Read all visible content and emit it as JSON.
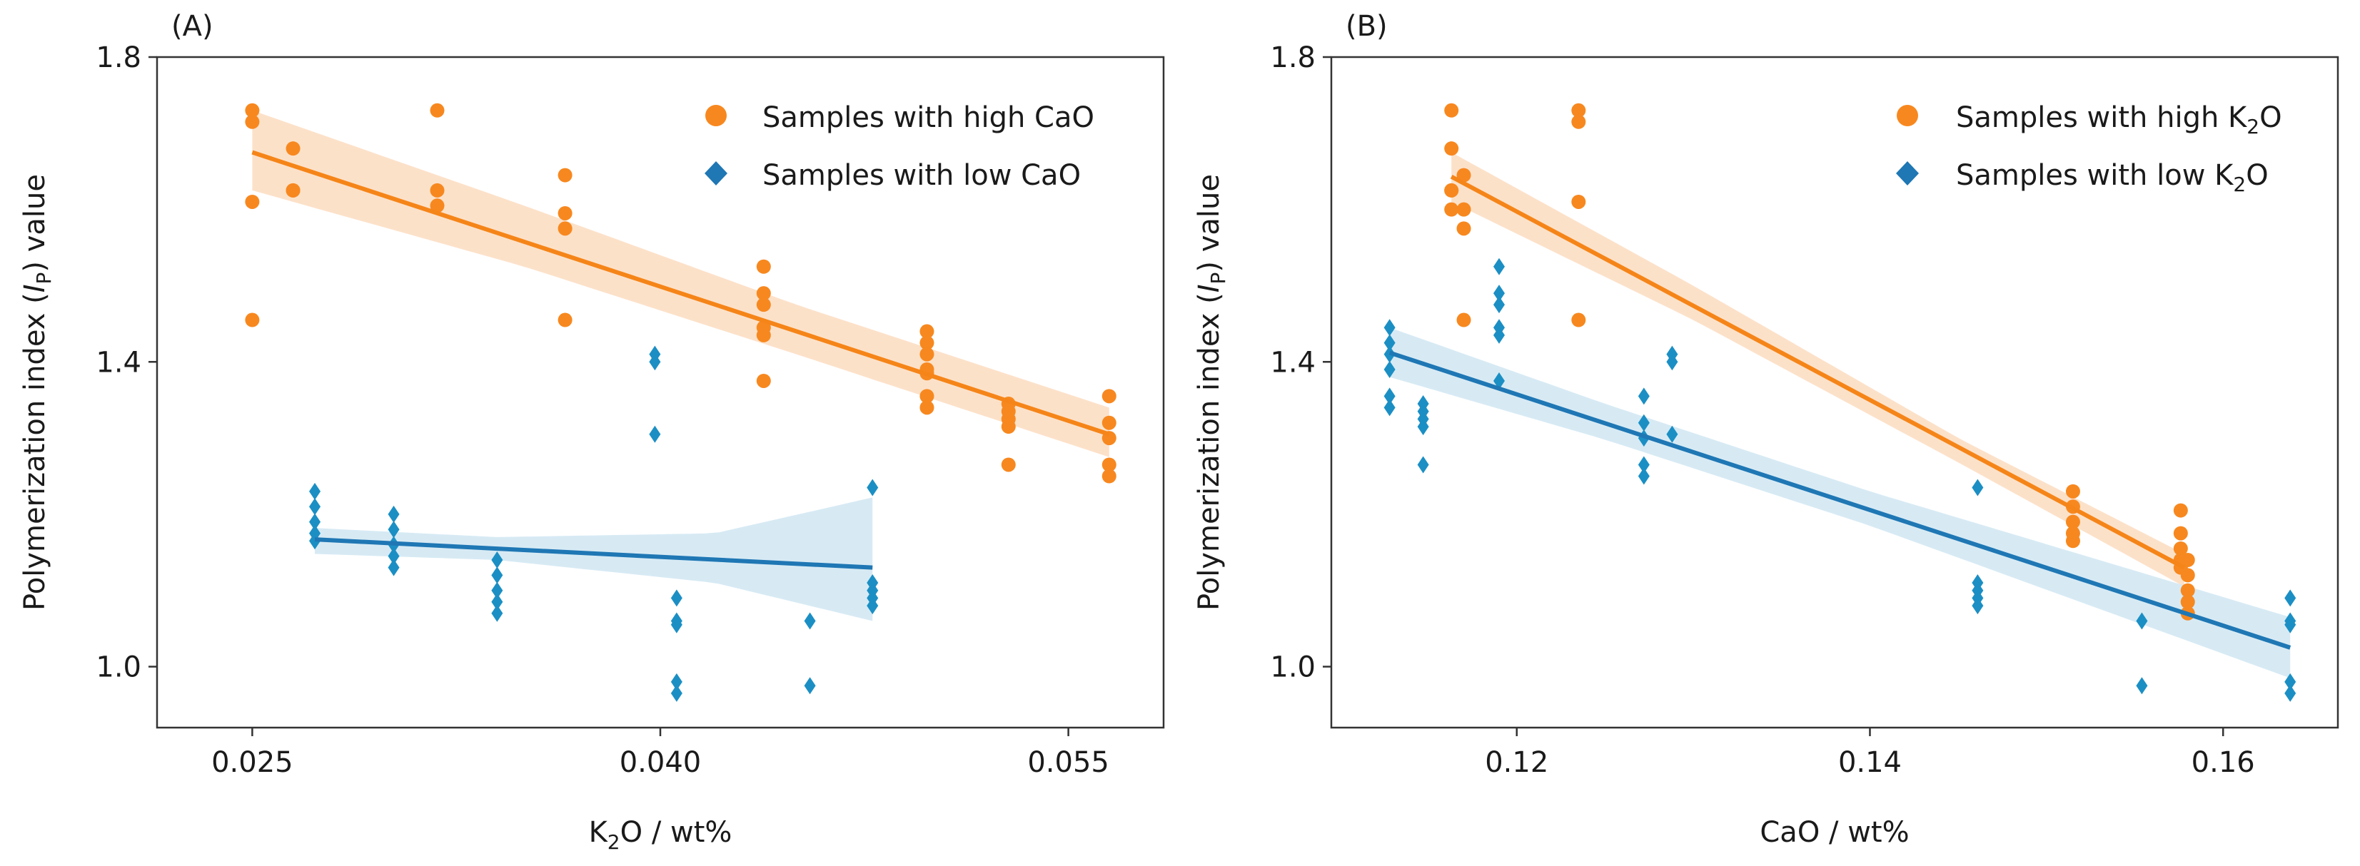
{
  "chart_data": [
    {
      "type": "scatter",
      "panel_label": "(A)",
      "xlabel": {
        "main": "K",
        "sub": "2",
        "rest": "O / wt%"
      },
      "ylabel": {
        "pre": "Polymerization index (",
        "var": "I",
        "sub": "P",
        "post": ") value"
      },
      "xlim": [
        0.0215,
        0.0585
      ],
      "ylim": [
        0.92,
        1.8
      ],
      "xticks": [
        0.025,
        0.04,
        0.055
      ],
      "xtick_labels": [
        "0.025",
        "0.040",
        "0.055"
      ],
      "yticks": [
        1.0,
        1.4,
        1.8
      ],
      "ytick_labels": [
        "1.0",
        "1.4",
        "1.8"
      ],
      "legend": [
        {
          "label_main": "Samples with high CaO",
          "label_sub": "",
          "label_rest": "",
          "marker": "circle",
          "color": "#f7881f"
        },
        {
          "label_main": "Samples with low CaO",
          "label_sub": "",
          "label_rest": "",
          "marker": "diamond",
          "color": "#1f77b4"
        }
      ],
      "series": [
        {
          "name": "Samples with high CaO",
          "marker": "circle",
          "color": "#f7881f",
          "band_color": "#fbd9bb",
          "points": [
            [
              0.025,
              1.73
            ],
            [
              0.025,
              1.715
            ],
            [
              0.025,
              1.61
            ],
            [
              0.025,
              1.455
            ],
            [
              0.0265,
              1.68
            ],
            [
              0.0265,
              1.625
            ],
            [
              0.0265,
              1.625
            ],
            [
              0.0318,
              1.73
            ],
            [
              0.0318,
              1.625
            ],
            [
              0.0318,
              1.605
            ],
            [
              0.0365,
              1.645
            ],
            [
              0.0365,
              1.595
            ],
            [
              0.0365,
              1.575
            ],
            [
              0.0365,
              1.455
            ],
            [
              0.0438,
              1.525
            ],
            [
              0.0438,
              1.49
            ],
            [
              0.0438,
              1.475
            ],
            [
              0.0438,
              1.445
            ],
            [
              0.0438,
              1.435
            ],
            [
              0.0438,
              1.375
            ],
            [
              0.0498,
              1.44
            ],
            [
              0.0498,
              1.425
            ],
            [
              0.0498,
              1.41
            ],
            [
              0.0498,
              1.39
            ],
            [
              0.0498,
              1.385
            ],
            [
              0.0498,
              1.355
            ],
            [
              0.0498,
              1.34
            ],
            [
              0.0528,
              1.345
            ],
            [
              0.0528,
              1.335
            ],
            [
              0.0528,
              1.325
            ],
            [
              0.0528,
              1.315
            ],
            [
              0.0528,
              1.265
            ],
            [
              0.0565,
              1.355
            ],
            [
              0.0565,
              1.32
            ],
            [
              0.0565,
              1.3
            ],
            [
              0.0565,
              1.265
            ],
            [
              0.0565,
              1.25
            ]
          ],
          "fit": {
            "x": [
              0.025,
              0.0565
            ],
            "y": [
              1.675,
              1.305
            ]
          },
          "band": {
            "x": [
              0.025,
              0.035,
              0.045,
              0.0565
            ],
            "upper": [
              1.73,
              1.605,
              1.475,
              1.34
            ],
            "lower": [
              1.625,
              1.525,
              1.41,
              1.275
            ]
          }
        },
        {
          "name": "Samples with low CaO",
          "marker": "diamond",
          "color": "#1b8fc4",
          "band_color": "#cde5f1",
          "points": [
            [
              0.0273,
              1.23
            ],
            [
              0.0273,
              1.21
            ],
            [
              0.0273,
              1.19
            ],
            [
              0.0273,
              1.175
            ],
            [
              0.0273,
              1.165
            ],
            [
              0.0302,
              1.2
            ],
            [
              0.0302,
              1.18
            ],
            [
              0.0302,
              1.16
            ],
            [
              0.0302,
              1.145
            ],
            [
              0.0302,
              1.13
            ],
            [
              0.034,
              1.14
            ],
            [
              0.034,
              1.12
            ],
            [
              0.034,
              1.1
            ],
            [
              0.034,
              1.085
            ],
            [
              0.034,
              1.07
            ],
            [
              0.0398,
              1.41
            ],
            [
              0.0398,
              1.4
            ],
            [
              0.0398,
              1.305
            ],
            [
              0.0406,
              1.09
            ],
            [
              0.0406,
              1.06
            ],
            [
              0.0406,
              1.055
            ],
            [
              0.0406,
              0.98
            ],
            [
              0.0406,
              0.965
            ],
            [
              0.0455,
              1.06
            ],
            [
              0.0455,
              0.975
            ],
            [
              0.0478,
              1.235
            ],
            [
              0.0478,
              1.11
            ],
            [
              0.0478,
              1.1
            ],
            [
              0.0478,
              1.09
            ],
            [
              0.0478,
              1.08
            ]
          ],
          "fit": {
            "x": [
              0.0273,
              0.0478
            ],
            "y": [
              1.167,
              1.13
            ]
          },
          "band": {
            "x": [
              0.0273,
              0.034,
              0.042,
              0.0478
            ],
            "upper": [
              1.182,
              1.17,
              1.175,
              1.222
            ],
            "lower": [
              1.148,
              1.14,
              1.11,
              1.06
            ]
          }
        }
      ]
    },
    {
      "type": "scatter",
      "panel_label": "(B)",
      "xlabel": {
        "main": "CaO / wt%",
        "sub": "",
        "rest": ""
      },
      "ylabel": {
        "pre": "Polymerization index (",
        "var": "I",
        "sub": "P",
        "post": ") value"
      },
      "xlim": [
        0.1095,
        0.1665
      ],
      "ylim": [
        0.92,
        1.8
      ],
      "xticks": [
        0.12,
        0.14,
        0.16
      ],
      "xtick_labels": [
        "0.12",
        "0.14",
        "0.16"
      ],
      "yticks": [
        1.0,
        1.4,
        1.8
      ],
      "ytick_labels": [
        "1.0",
        "1.4",
        "1.8"
      ],
      "legend": [
        {
          "label_main": "Samples with high K",
          "label_sub": "2",
          "label_rest": "O",
          "marker": "circle",
          "color": "#f7881f"
        },
        {
          "label_main": "Samples with low K",
          "label_sub": "2",
          "label_rest": "O",
          "marker": "diamond",
          "color": "#1f77b4"
        }
      ],
      "series": [
        {
          "name": "Samples with high K2O",
          "marker": "circle",
          "color": "#f7881f",
          "band_color": "#fbd9bb",
          "points": [
            [
              0.1163,
              1.73
            ],
            [
              0.1163,
              1.68
            ],
            [
              0.1163,
              1.625
            ],
            [
              0.1163,
              1.625
            ],
            [
              0.1163,
              1.6
            ],
            [
              0.117,
              1.645
            ],
            [
              0.117,
              1.6
            ],
            [
              0.117,
              1.575
            ],
            [
              0.117,
              1.455
            ],
            [
              0.1235,
              1.73
            ],
            [
              0.1235,
              1.715
            ],
            [
              0.1235,
              1.61
            ],
            [
              0.1235,
              1.455
            ],
            [
              0.1515,
              1.23
            ],
            [
              0.1515,
              1.21
            ],
            [
              0.1515,
              1.19
            ],
            [
              0.1515,
              1.175
            ],
            [
              0.1515,
              1.165
            ],
            [
              0.1576,
              1.205
            ],
            [
              0.1576,
              1.175
            ],
            [
              0.1576,
              1.155
            ],
            [
              0.1576,
              1.14
            ],
            [
              0.1576,
              1.13
            ],
            [
              0.158,
              1.14
            ],
            [
              0.158,
              1.12
            ],
            [
              0.158,
              1.1
            ],
            [
              0.158,
              1.085
            ],
            [
              0.158,
              1.07
            ]
          ],
          "fit": {
            "x": [
              0.1163,
              0.1578
            ],
            "y": [
              1.643,
              1.13
            ]
          },
          "band": {
            "x": [
              0.1163,
              0.13,
              0.145,
              0.1578
            ],
            "upper": [
              1.675,
              1.5,
              1.3,
              1.148
            ],
            "lower": [
              1.61,
              1.455,
              1.268,
              1.105
            ]
          }
        },
        {
          "name": "Samples with low K2O",
          "marker": "diamond",
          "color": "#1b8fc4",
          "band_color": "#cde5f1",
          "points": [
            [
              0.1128,
              1.445
            ],
            [
              0.1128,
              1.425
            ],
            [
              0.1128,
              1.41
            ],
            [
              0.1128,
              1.39
            ],
            [
              0.1128,
              1.355
            ],
            [
              0.1128,
              1.34
            ],
            [
              0.1147,
              1.345
            ],
            [
              0.1147,
              1.335
            ],
            [
              0.1147,
              1.325
            ],
            [
              0.1147,
              1.315
            ],
            [
              0.1147,
              1.265
            ],
            [
              0.119,
              1.525
            ],
            [
              0.119,
              1.49
            ],
            [
              0.119,
              1.475
            ],
            [
              0.119,
              1.445
            ],
            [
              0.119,
              1.435
            ],
            [
              0.119,
              1.375
            ],
            [
              0.1272,
              1.355
            ],
            [
              0.1272,
              1.32
            ],
            [
              0.1272,
              1.3
            ],
            [
              0.1272,
              1.265
            ],
            [
              0.1272,
              1.25
            ],
            [
              0.1288,
              1.41
            ],
            [
              0.1288,
              1.4
            ],
            [
              0.1288,
              1.305
            ],
            [
              0.1461,
              1.235
            ],
            [
              0.1461,
              1.11
            ],
            [
              0.1461,
              1.1
            ],
            [
              0.1461,
              1.09
            ],
            [
              0.1461,
              1.08
            ],
            [
              0.1554,
              1.06
            ],
            [
              0.1554,
              0.975
            ],
            [
              0.1638,
              1.09
            ],
            [
              0.1638,
              1.06
            ],
            [
              0.1638,
              1.055
            ],
            [
              0.1638,
              0.98
            ],
            [
              0.1638,
              0.965
            ]
          ],
          "fit": {
            "x": [
              0.1128,
              0.1638
            ],
            "y": [
              1.412,
              1.025
            ]
          },
          "band": {
            "x": [
              0.1128,
              0.125,
              0.14,
              0.1638
            ],
            "upper": [
              1.445,
              1.345,
              1.23,
              1.065
            ],
            "lower": [
              1.38,
              1.298,
              1.185,
              0.985
            ]
          }
        }
      ]
    }
  ]
}
